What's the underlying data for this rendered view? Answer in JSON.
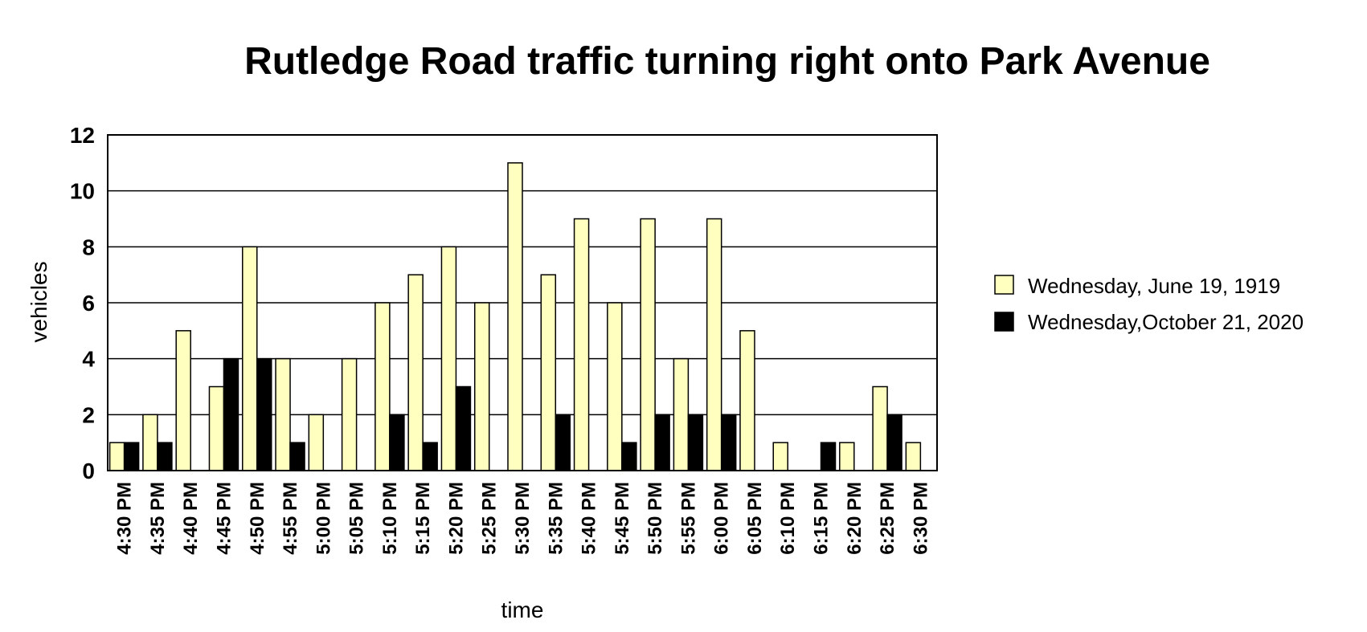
{
  "chart_data": {
    "type": "bar",
    "title": "Rutledge Road traffic turning right onto Park Avenue",
    "xlabel": "time",
    "ylabel": "vehicles",
    "ylim": [
      0,
      12
    ],
    "yticks": [
      "0",
      "2",
      "4",
      "6",
      "8",
      "10",
      "12"
    ],
    "grid": "horizontal",
    "legend_position": "right",
    "categories": [
      "4:30 PM",
      "4:35 PM",
      "4:40 PM",
      "4:45 PM",
      "4:50 PM",
      "4:55 PM",
      "5:00 PM",
      "5:05 PM",
      "5:10 PM",
      "5:15 PM",
      "5:20 PM",
      "5:25 PM",
      "5:30 PM",
      "5:35 PM",
      "5:40 PM",
      "5:45 PM",
      "5:50 PM",
      "5:55 PM",
      "6:00 PM",
      "6:05 PM",
      "6:10 PM",
      "6:15 PM",
      "6:20 PM",
      "6:25 PM",
      "6:30 PM"
    ],
    "series": [
      {
        "name": "Wednesday, June 19, 1919",
        "color": "#ffffc0",
        "values": [
          1,
          2,
          5,
          3,
          8,
          4,
          2,
          4,
          6,
          7,
          8,
          6,
          11,
          7,
          9,
          6,
          9,
          4,
          9,
          5,
          1,
          0,
          1,
          3,
          1
        ]
      },
      {
        "name": "Wednesday,October 21, 2020",
        "color": "#000000",
        "values": [
          1,
          1,
          0,
          4,
          4,
          1,
          0,
          0,
          2,
          1,
          3,
          0,
          0,
          2,
          0,
          1,
          2,
          2,
          2,
          0,
          0,
          1,
          0,
          2,
          0
        ]
      }
    ]
  }
}
